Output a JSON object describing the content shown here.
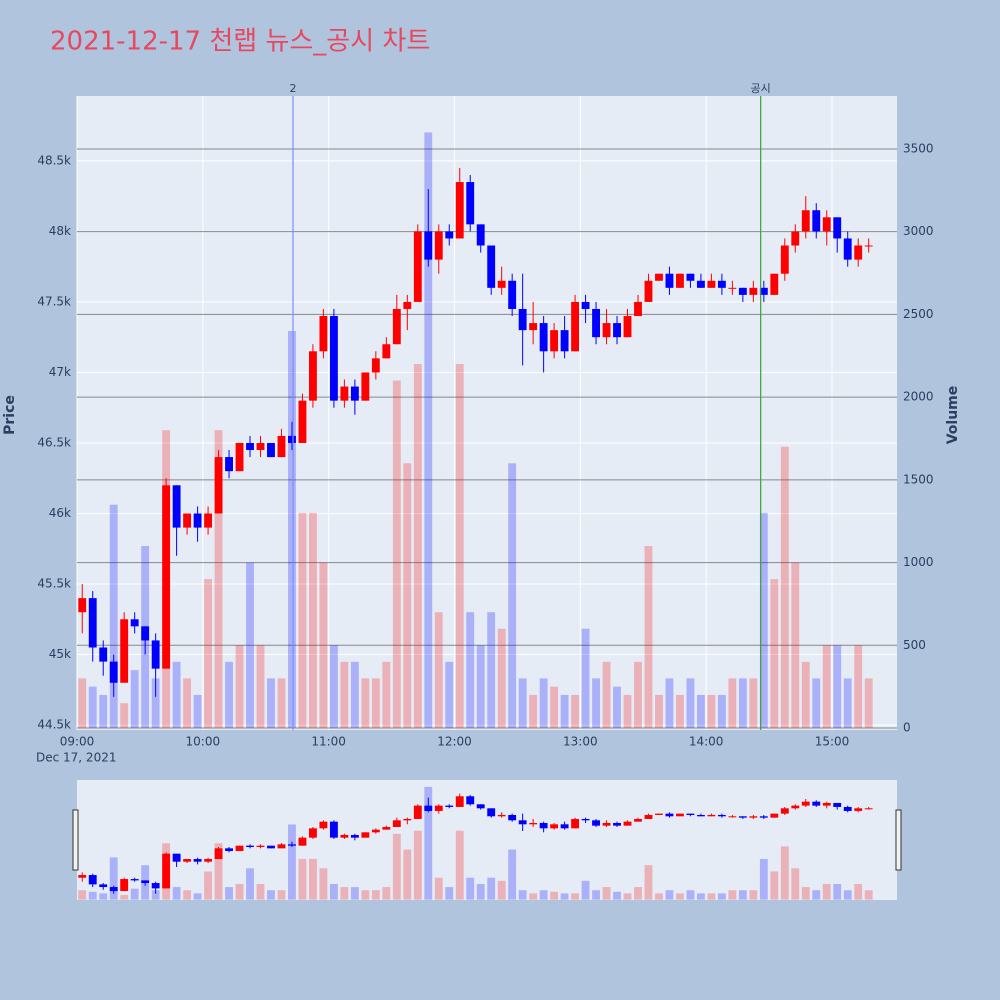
{
  "chart_data": {
    "type": "candlestick",
    "title": "2021-12-17 천랩 뉴스_공시 차트",
    "ylabel": "Price",
    "y2label": "Volume",
    "x": [
      "2021-12-17 09:00",
      "2021-12-17 09:05",
      "2021-12-17 09:10",
      "2021-12-17 09:15",
      "2021-12-17 09:20",
      "2021-12-17 09:25",
      "2021-12-17 09:30",
      "2021-12-17 09:35",
      "2021-12-17 09:40",
      "2021-12-17 09:45",
      "2021-12-17 09:50",
      "2021-12-17 09:55",
      "2021-12-17 10:00",
      "2021-12-17 10:05",
      "2021-12-17 10:10",
      "2021-12-17 10:15",
      "2021-12-17 10:20",
      "2021-12-17 10:25",
      "2021-12-17 10:30",
      "2021-12-17 10:35",
      "2021-12-17 10:40",
      "2021-12-17 10:45",
      "2021-12-17 10:50",
      "2021-12-17 10:55",
      "2021-12-17 11:00",
      "2021-12-17 11:05",
      "2021-12-17 11:10",
      "2021-12-17 11:15",
      "2021-12-17 11:20",
      "2021-12-17 11:25",
      "2021-12-17 11:30",
      "2021-12-17 11:35",
      "2021-12-17 11:40",
      "2021-12-17 11:45",
      "2021-12-17 11:50",
      "2021-12-17 11:55",
      "2021-12-17 12:00",
      "2021-12-17 12:05",
      "2021-12-17 12:10",
      "2021-12-17 12:15",
      "2021-12-17 12:20",
      "2021-12-17 12:25",
      "2021-12-17 12:30",
      "2021-12-17 12:35",
      "2021-12-17 12:40",
      "2021-12-17 12:45",
      "2021-12-17 12:50",
      "2021-12-17 12:55",
      "2021-12-17 13:00",
      "2021-12-17 13:05",
      "2021-12-17 13:10",
      "2021-12-17 13:15",
      "2021-12-17 13:20",
      "2021-12-17 13:25",
      "2021-12-17 13:30",
      "2021-12-17 13:35",
      "2021-12-17 13:40",
      "2021-12-17 13:45",
      "2021-12-17 13:50",
      "2021-12-17 13:55",
      "2021-12-17 14:00",
      "2021-12-17 14:05",
      "2021-12-17 14:10",
      "2021-12-17 14:15",
      "2021-12-17 14:20",
      "2021-12-17 14:25",
      "2021-12-17 14:30",
      "2021-12-17 14:35",
      "2021-12-17 14:40",
      "2021-12-17 14:45",
      "2021-12-17 14:50",
      "2021-12-17 14:55",
      "2021-12-17 15:00",
      "2021-12-17 15:05",
      "2021-12-17 15:10",
      "2021-12-17 15:15"
    ],
    "open": [
      45300,
      45400,
      45050,
      44950,
      44800,
      45250,
      45200,
      45100,
      44900,
      46200,
      45900,
      46000,
      45900,
      46000,
      46400,
      46300,
      46500,
      46450,
      46500,
      46400,
      46550,
      46500,
      46800,
      47150,
      47400,
      46800,
      46900,
      46800,
      47000,
      47100,
      47200,
      47450,
      47500,
      48000,
      47800,
      48000,
      47950,
      48350,
      48050,
      47900,
      47600,
      47650,
      47450,
      47300,
      47350,
      47150,
      47300,
      47150,
      47500,
      47450,
      47250,
      47350,
      47250,
      47400,
      47500,
      47650,
      47700,
      47600,
      47700,
      47650,
      47600,
      47650,
      47600,
      47600,
      47550,
      47600,
      47550,
      47700,
      47900,
      48000,
      48150,
      48000,
      48100,
      47950,
      47800,
      47900
    ],
    "high": [
      45500,
      45450,
      45100,
      45000,
      45300,
      45300,
      45200,
      45150,
      46250,
      46200,
      46000,
      46050,
      46050,
      46450,
      46450,
      46500,
      46550,
      46550,
      46500,
      46600,
      46650,
      46850,
      47200,
      47450,
      47450,
      46950,
      46950,
      47000,
      47150,
      47250,
      47550,
      47550,
      48050,
      48300,
      48050,
      48050,
      48450,
      48400,
      48050,
      47900,
      47750,
      47700,
      47700,
      47500,
      47400,
      47350,
      47400,
      47550,
      47550,
      47500,
      47450,
      47400,
      47450,
      47550,
      47700,
      47700,
      47750,
      47700,
      47700,
      47700,
      47700,
      47700,
      47650,
      47600,
      47650,
      47650,
      47700,
      47950,
      48050,
      48250,
      48200,
      48150,
      48100,
      48000,
      47950,
      47950
    ],
    "low": [
      45150,
      44950,
      44850,
      44700,
      44800,
      45150,
      45000,
      44700,
      44900,
      45700,
      45850,
      45800,
      45850,
      46000,
      46250,
      46300,
      46400,
      46400,
      46400,
      46400,
      46450,
      46500,
      46750,
      47100,
      46750,
      46750,
      46700,
      46800,
      46950,
      47100,
      47200,
      47300,
      47500,
      47750,
      47700,
      47900,
      47950,
      48000,
      47850,
      47550,
      47550,
      47400,
      47050,
      47200,
      47000,
      47100,
      47100,
      47150,
      47350,
      47200,
      47200,
      47200,
      47250,
      47400,
      47500,
      47650,
      47550,
      47600,
      47600,
      47600,
      47600,
      47550,
      47550,
      47500,
      47500,
      47500,
      47550,
      47650,
      47850,
      47950,
      47950,
      47900,
      47850,
      47750,
      47750,
      47850
    ],
    "close": [
      45400,
      45050,
      44950,
      44800,
      45250,
      45200,
      45100,
      44900,
      46200,
      45900,
      46000,
      45900,
      46000,
      46400,
      46300,
      46500,
      46450,
      46500,
      46400,
      46550,
      46500,
      46800,
      47150,
      47400,
      46800,
      46900,
      46800,
      47000,
      47100,
      47200,
      47450,
      47500,
      48000,
      47800,
      48000,
      47950,
      48350,
      48050,
      47900,
      47600,
      47650,
      47450,
      47300,
      47350,
      47150,
      47300,
      47150,
      47500,
      47450,
      47250,
      47350,
      47250,
      47400,
      47500,
      47650,
      47700,
      47600,
      47700,
      47650,
      47600,
      47650,
      47600,
      47600,
      47550,
      47600,
      47550,
      47700,
      47900,
      48000,
      48150,
      48000,
      48100,
      47950,
      47800,
      47900,
      47900
    ],
    "volume": [
      300,
      250,
      200,
      1350,
      150,
      350,
      1100,
      300,
      1800,
      400,
      300,
      200,
      900,
      1800,
      400,
      500,
      1000,
      500,
      300,
      300,
      2400,
      1300,
      1300,
      1000,
      500,
      400,
      400,
      300,
      300,
      400,
      2100,
      1600,
      2200,
      3600,
      700,
      400,
      2200,
      700,
      500,
      700,
      600,
      1600,
      300,
      200,
      300,
      250,
      200,
      200,
      600,
      300,
      400,
      250,
      200,
      400,
      1100,
      200,
      300,
      200,
      300,
      200,
      200,
      200,
      300,
      300,
      300,
      1300,
      900,
      1700,
      1000,
      400,
      300,
      500,
      500,
      300,
      500,
      300
    ],
    "increasing_color": "#ff0000",
    "decreasing_color": "#0000ff",
    "xlim": [
      "2021-12-17 09:00",
      "2021-12-17 15:31"
    ],
    "xticks": [
      {
        "value": "2021-12-17 09:00",
        "label": "09:00"
      },
      {
        "value": "2021-12-17 10:00",
        "label": "10:00"
      },
      {
        "value": "2021-12-17 11:00",
        "label": "11:00"
      },
      {
        "value": "2021-12-17 12:00",
        "label": "12:00"
      },
      {
        "value": "2021-12-17 13:00",
        "label": "13:00"
      },
      {
        "value": "2021-12-17 14:00",
        "label": "14:00"
      },
      {
        "value": "2021-12-17 15:00",
        "label": "15:00"
      }
    ],
    "x_date_label": "Dec 17, 2021",
    "ylim": [
      44465,
      48960
    ],
    "yticks": [
      {
        "value": 44500,
        "label": "44.5k"
      },
      {
        "value": 45000,
        "label": "45k"
      },
      {
        "value": 45500,
        "label": "45.5k"
      },
      {
        "value": 46000,
        "label": "46k"
      },
      {
        "value": 46500,
        "label": "46.5k"
      },
      {
        "value": 47000,
        "label": "47k"
      },
      {
        "value": 47500,
        "label": "47.5k"
      },
      {
        "value": 48000,
        "label": "48k"
      },
      {
        "value": 48500,
        "label": "48.5k"
      }
    ],
    "y2lim": [
      -12,
      3820
    ],
    "y2ticks": [
      0,
      500,
      1000,
      1500,
      2000,
      2500,
      3000,
      3500
    ],
    "annotations": [
      {
        "x": "2021-12-17 10:43",
        "text": "2",
        "color": "#7d8cff"
      },
      {
        "x": "2021-12-17 14:26",
        "text": "공시",
        "color": "#3aa03a"
      }
    ],
    "grid": true,
    "rangeslider": true
  }
}
